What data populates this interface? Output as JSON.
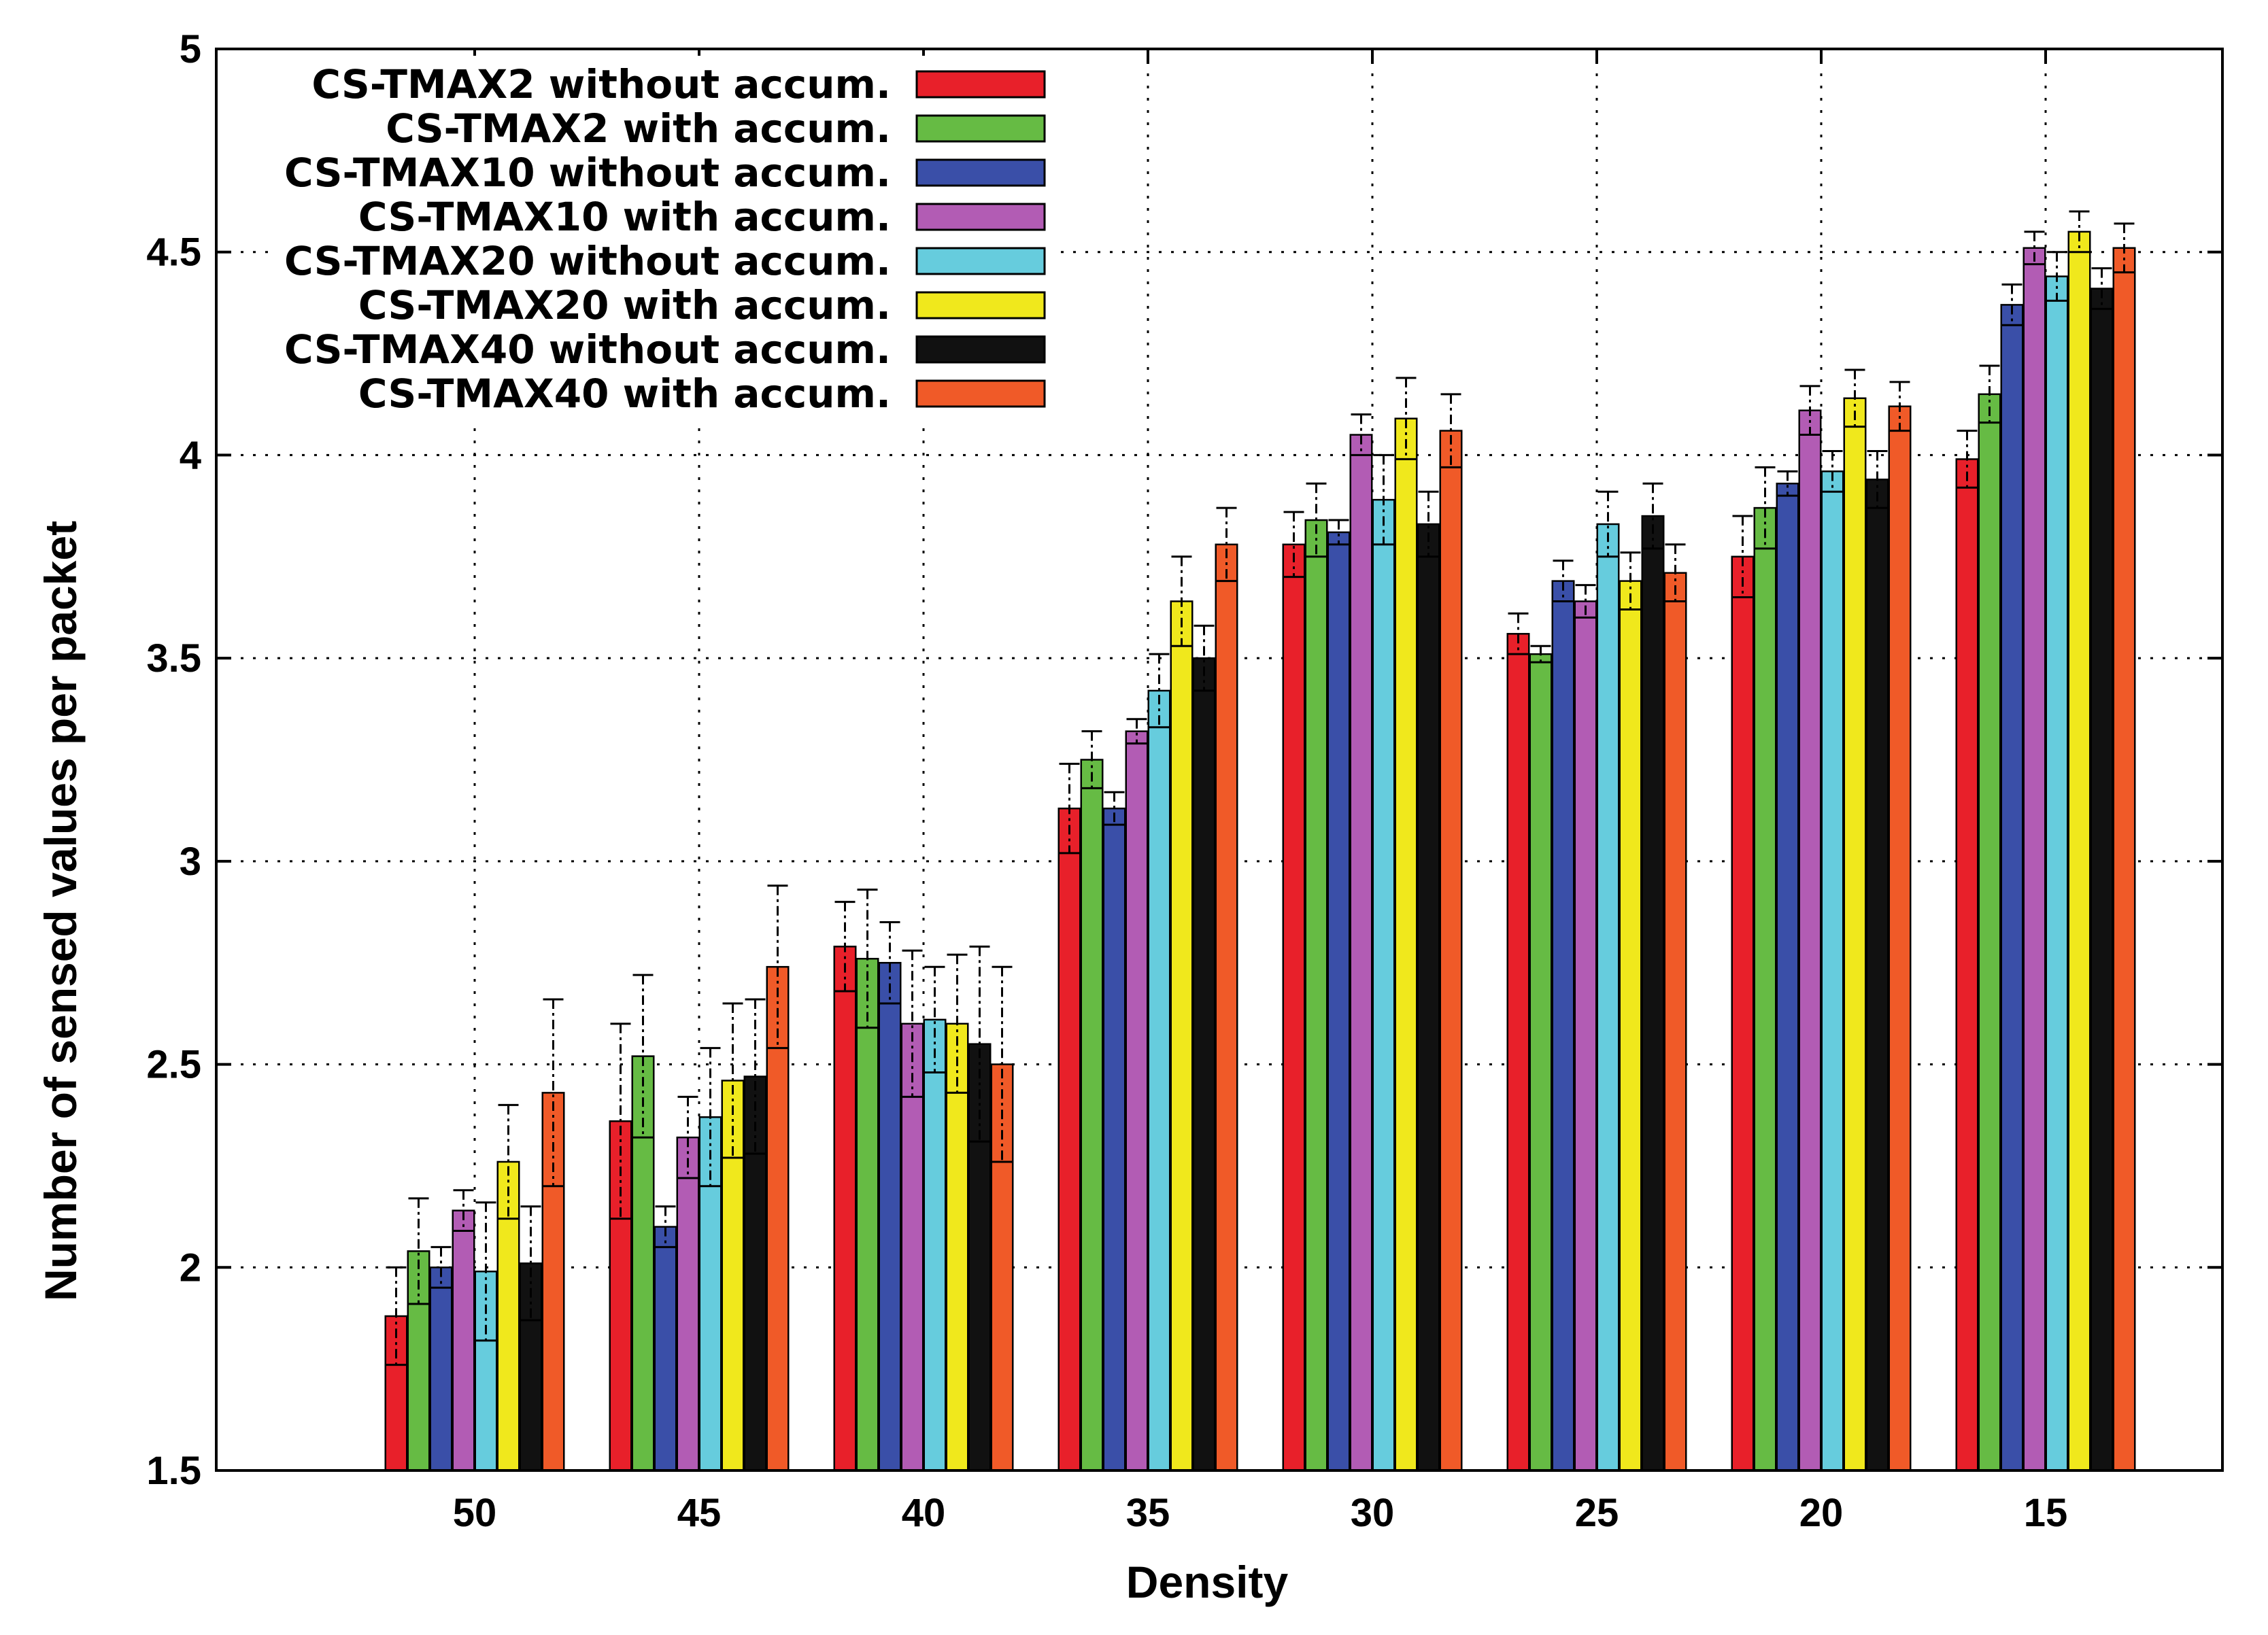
{
  "chart_data": {
    "type": "bar",
    "title": "",
    "xlabel": "Density",
    "ylabel": "Number of sensed values per packet",
    "ylim": [
      1.5,
      5
    ],
    "yticks": [
      "1.5",
      "2",
      "2.5",
      "3",
      "3.5",
      "4",
      "4.5",
      "5"
    ],
    "categories": [
      "50",
      "45",
      "40",
      "35",
      "30",
      "25",
      "20",
      "15"
    ],
    "grid": true,
    "legend_position": "top-left",
    "series": [
      {
        "name": "CS-TMAX2 without accum.",
        "color": "#e8202a",
        "values": [
          1.88,
          2.36,
          2.79,
          3.13,
          3.78,
          3.56,
          3.75,
          3.99
        ],
        "errors": [
          0.12,
          0.24,
          0.11,
          0.11,
          0.08,
          0.05,
          0.1,
          0.07
        ]
      },
      {
        "name": "CS-TMAX2 with accum.",
        "color": "#66bb44",
        "values": [
          2.04,
          2.52,
          2.76,
          3.25,
          3.84,
          3.51,
          3.87,
          4.15
        ],
        "errors": [
          0.13,
          0.2,
          0.17,
          0.07,
          0.09,
          0.02,
          0.1,
          0.07
        ]
      },
      {
        "name": "CS-TMAX10 without accum.",
        "color": "#3a4fa8",
        "values": [
          2.0,
          2.1,
          2.75,
          3.13,
          3.81,
          3.69,
          3.93,
          4.37
        ],
        "errors": [
          0.05,
          0.05,
          0.1,
          0.04,
          0.03,
          0.05,
          0.03,
          0.05
        ]
      },
      {
        "name": "CS-TMAX10 with accum.",
        "color": "#b25cb4",
        "values": [
          2.14,
          2.32,
          2.6,
          3.32,
          4.05,
          3.64,
          4.11,
          4.51
        ],
        "errors": [
          0.05,
          0.1,
          0.18,
          0.03,
          0.05,
          0.04,
          0.06,
          0.04
        ]
      },
      {
        "name": "CS-TMAX20 without accum.",
        "color": "#66ccdd",
        "values": [
          1.99,
          2.37,
          2.61,
          3.42,
          3.89,
          3.83,
          3.96,
          4.44
        ],
        "errors": [
          0.17,
          0.17,
          0.13,
          0.09,
          0.11,
          0.08,
          0.05,
          0.06
        ]
      },
      {
        "name": "CS-TMAX20 with accum.",
        "color": "#f0e81c",
        "values": [
          2.26,
          2.46,
          2.6,
          3.64,
          4.09,
          3.69,
          4.14,
          4.55
        ],
        "errors": [
          0.14,
          0.19,
          0.17,
          0.11,
          0.1,
          0.07,
          0.07,
          0.05
        ]
      },
      {
        "name": "CS-TMAX40 without accum.",
        "color": "#111111",
        "values": [
          2.01,
          2.47,
          2.55,
          3.5,
          3.83,
          3.85,
          3.94,
          4.41
        ],
        "errors": [
          0.14,
          0.19,
          0.24,
          0.08,
          0.08,
          0.08,
          0.07,
          0.05
        ]
      },
      {
        "name": "CS-TMAX40 with accum.",
        "color": "#f05a28",
        "values": [
          2.43,
          2.74,
          2.5,
          3.78,
          4.06,
          3.71,
          4.12,
          4.51
        ],
        "errors": [
          0.23,
          0.2,
          0.24,
          0.09,
          0.09,
          0.07,
          0.06,
          0.06
        ]
      }
    ]
  }
}
